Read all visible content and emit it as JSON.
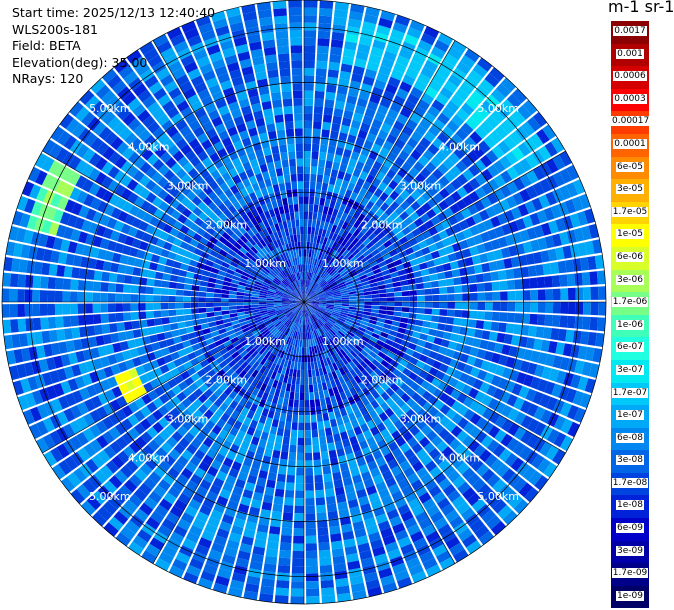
{
  "info": {
    "start_time": "Start time: 2025/12/13 12:40:40",
    "instrument": "WLS200s-181",
    "field": "Field: BETA",
    "elevation": "Elevation(deg): 35.00",
    "nrays": "NRays: 120"
  },
  "colorbar": {
    "title": "m-1 sr-1",
    "labels": [
      "0.0017",
      "0.001",
      "0.0006",
      "0.0003",
      "0.00017",
      "0.0001",
      "6e-05",
      "3e-05",
      "1.7e-05",
      "1e-05",
      "6e-06",
      "3e-06",
      "1.7e-06",
      "1e-06",
      "6e-07",
      "3e-07",
      "1.7e-07",
      "1e-07",
      "6e-08",
      "3e-08",
      "1.7e-08",
      "1e-08",
      "6e-09",
      "3e-09",
      "1.7e-09",
      "1e-09"
    ],
    "colors": [
      "#8b0000",
      "#b00000",
      "#d40000",
      "#ff0000",
      "#ff3c00",
      "#ff6400",
      "#ff8c00",
      "#ffb000",
      "#ffd400",
      "#ffff00",
      "#d8ff28",
      "#a8ff58",
      "#78ff88",
      "#40ffb8",
      "#20ffe0",
      "#00e8f0",
      "#00c8f8",
      "#00a8f8",
      "#0088f0",
      "#0066e8",
      "#0044e0",
      "#0022d8",
      "#0000c8",
      "#0000a8",
      "#000088",
      "#000066"
    ]
  },
  "chart_data": {
    "type": "ppi_polar",
    "field": "BETA",
    "units": "m-1 sr-1",
    "elevation_deg": 35.0,
    "n_rays": 120,
    "max_range_km": 5.5,
    "range_rings_km": [
      1,
      2,
      3,
      4,
      5
    ],
    "ring_labels": [
      "1.00km",
      "2.00km",
      "3.00km",
      "4.00km",
      "5.00km"
    ],
    "azimuth_spokes_deg": [
      0,
      30,
      60,
      90,
      120,
      150,
      180,
      210,
      240,
      270,
      300,
      330
    ],
    "scale": "log",
    "value_range": [
      1e-09,
      0.0017
    ],
    "features": [
      {
        "range_km": [
          4.7,
          5.2
        ],
        "azimuth_deg": [
          285,
          300
        ],
        "level": 1.7e-06
      },
      {
        "range_km": [
          3.3,
          3.7
        ],
        "azimuth_deg": [
          240,
          250
        ],
        "level": 1e-05
      },
      {
        "range_km": [
          4.4,
          5.2
        ],
        "azimuth_deg": [
          10,
          60
        ],
        "level": 1.7e-07
      }
    ]
  }
}
